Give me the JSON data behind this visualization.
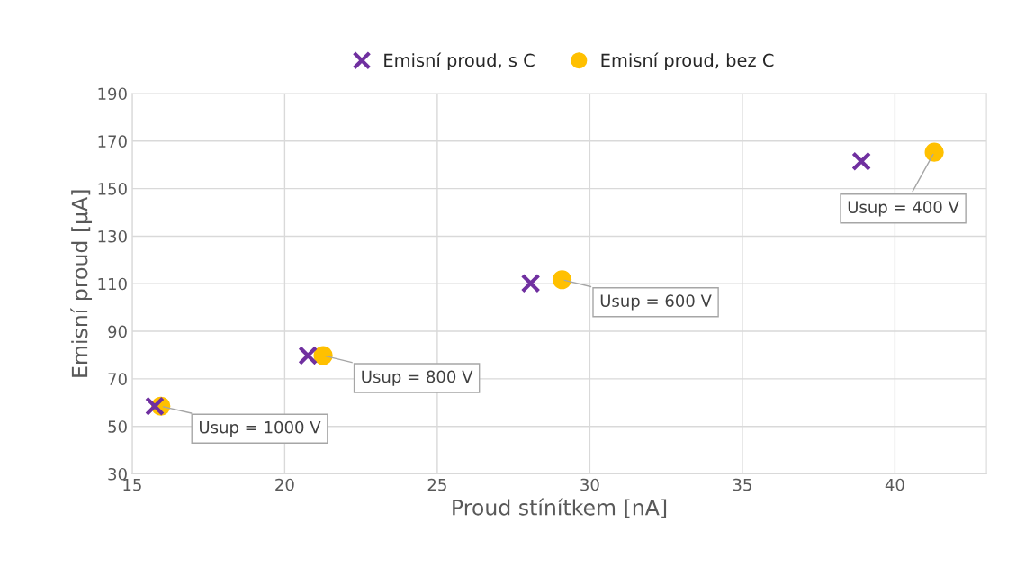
{
  "chart_data": {
    "type": "scatter",
    "xlabel": "Proud stínítkem [nA]",
    "ylabel": "Emisní proud [µA]",
    "xlim": [
      15,
      43
    ],
    "xticks": [
      15,
      20,
      25,
      30,
      35,
      40
    ],
    "ylim": [
      30,
      190
    ],
    "yticks": [
      30,
      50,
      70,
      90,
      110,
      130,
      150,
      170,
      190
    ],
    "grid": true,
    "legend": "top",
    "series": [
      {
        "name": "Emisní proud, s C",
        "color": "#7030a0",
        "marker": "cross",
        "x": [
          15.74,
          20.76,
          28.06,
          38.9
        ],
        "values": [
          58.5,
          79.8,
          110.2,
          161.5
        ]
      },
      {
        "name": "Emisní proud, bez C",
        "color": "#ffc000",
        "marker": "circle",
        "x": [
          15.94,
          21.26,
          29.09,
          41.29
        ],
        "values": [
          58.5,
          79.8,
          111.7,
          165.3
        ]
      }
    ],
    "annotations": [
      {
        "text": "Usup = 1000 V",
        "x": 15.94,
        "y": 58.5
      },
      {
        "text": "Usup = 800 V",
        "x": 21.26,
        "y": 79.8
      },
      {
        "text": "Usup = 600 V",
        "x": 29.09,
        "y": 111.7
      },
      {
        "text": "Usup = 400 V",
        "x": 41.29,
        "y": 165.3
      }
    ]
  }
}
